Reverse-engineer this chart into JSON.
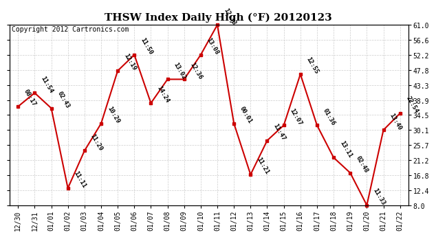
{
  "title": "THSW Index Daily High (°F) 20120123",
  "copyright": "Copyright 2012 Cartronics.com",
  "x_labels": [
    "12/30",
    "12/31",
    "01/01",
    "01/02",
    "01/03",
    "01/04",
    "01/05",
    "01/06",
    "01/07",
    "01/08",
    "01/09",
    "01/10",
    "01/11",
    "01/12",
    "01/13",
    "01/14",
    "01/15",
    "01/16",
    "01/17",
    "01/18",
    "01/19",
    "01/20",
    "01/21",
    "01/22"
  ],
  "y_values": [
    37.0,
    41.0,
    36.5,
    13.0,
    24.0,
    32.0,
    47.5,
    52.2,
    38.0,
    45.0,
    45.0,
    52.2,
    61.0,
    32.0,
    17.0,
    27.0,
    31.5,
    46.5,
    31.5,
    22.0,
    17.5,
    8.0,
    30.1,
    35.0
  ],
  "point_labels": [
    "08:17",
    "11:54",
    "02:43",
    "11:11",
    "11:29",
    "10:29",
    "12:19",
    "11:50",
    "14:24",
    "13:02",
    "12:36",
    "13:08",
    "12:33",
    "00:01",
    "11:21",
    "11:47",
    "12:07",
    "12:55",
    "01:36",
    "13:11",
    "02:48",
    "11:33",
    "13:40",
    "22:54"
  ],
  "line_color": "#cc0000",
  "marker_color": "#cc0000",
  "bg_color": "#ffffff",
  "plot_bg_color": "#ffffff",
  "grid_color": "#cccccc",
  "title_fontsize": 11,
  "tick_fontsize": 7,
  "copyright_fontsize": 7,
  "point_label_fontsize": 6.5,
  "ylim_min": 8.0,
  "ylim_max": 61.0,
  "ytick_values": [
    8.0,
    12.4,
    16.8,
    21.2,
    25.7,
    30.1,
    34.5,
    38.9,
    43.3,
    47.8,
    52.2,
    56.6,
    61.0
  ],
  "ytick_labels": [
    "8.0",
    "12.4",
    "16.8",
    "21.2",
    "25.7",
    "30.1",
    "34.5",
    "38.9",
    "43.3",
    "47.8",
    "52.2",
    "56.6",
    "61.0"
  ]
}
